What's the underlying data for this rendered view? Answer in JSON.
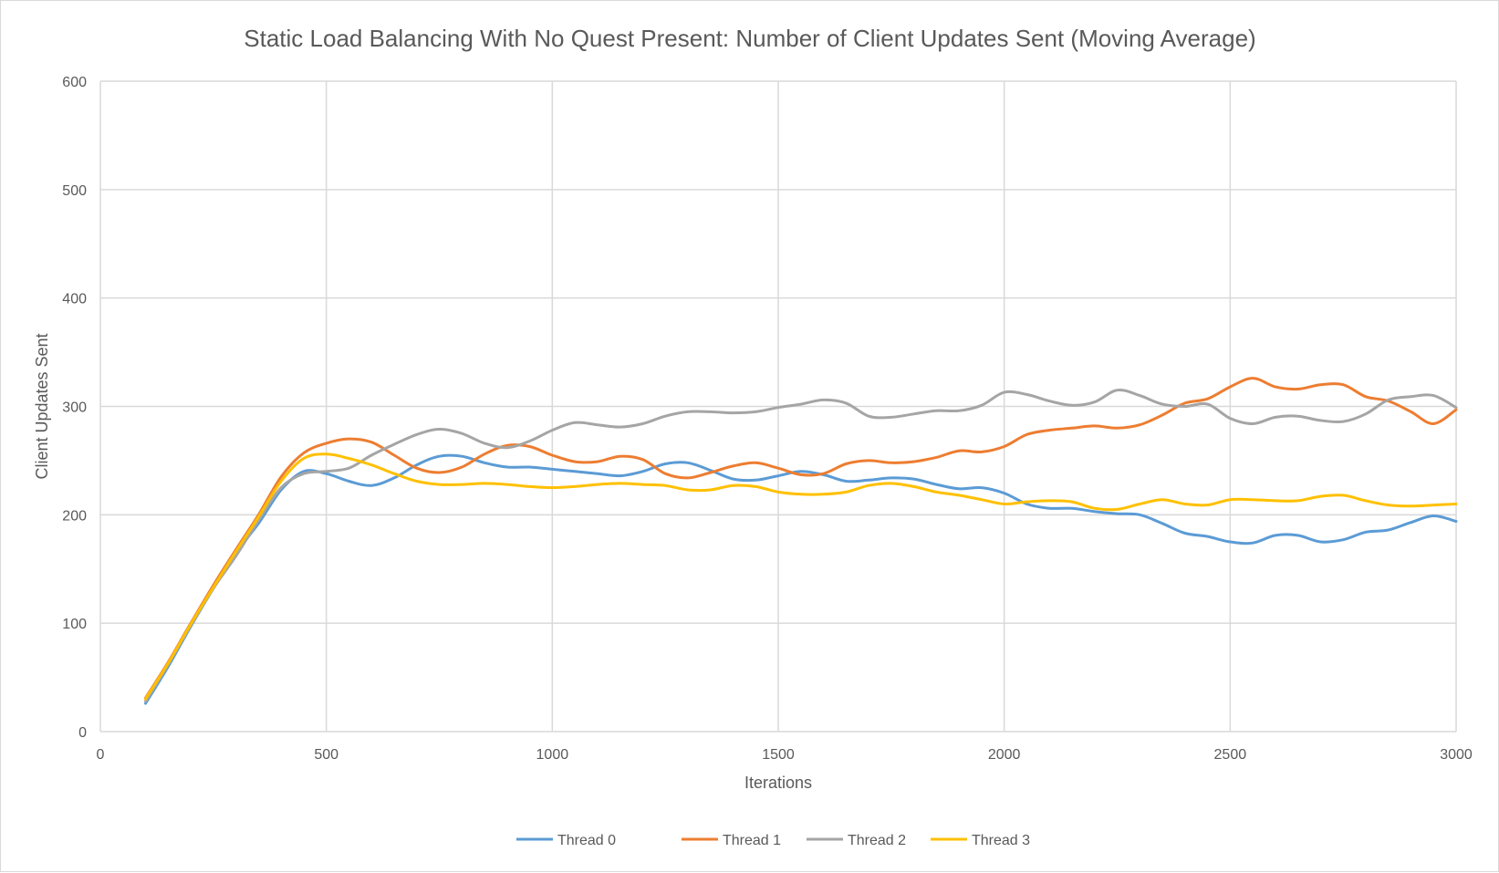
{
  "chart_data": {
    "type": "line",
    "title": "Static Load Balancing With No Quest Present: Number of Client Updates Sent (Moving Average)",
    "xlabel": "Iterations",
    "ylabel": "Client Updates Sent",
    "xlim": [
      0,
      3000
    ],
    "ylim": [
      0,
      600
    ],
    "x_ticks": [
      0,
      500,
      1000,
      1500,
      2000,
      2500,
      3000
    ],
    "y_ticks": [
      0,
      100,
      200,
      300,
      400,
      500,
      600
    ],
    "grid": true,
    "legend_position": "bottom",
    "x": [
      100,
      150,
      200,
      250,
      300,
      350,
      400,
      450,
      500,
      550,
      600,
      650,
      700,
      750,
      800,
      850,
      900,
      950,
      1000,
      1050,
      1100,
      1150,
      1200,
      1250,
      1300,
      1350,
      1400,
      1450,
      1500,
      1550,
      1600,
      1650,
      1700,
      1750,
      1800,
      1850,
      1900,
      1950,
      2000,
      2050,
      2100,
      2150,
      2200,
      2250,
      2300,
      2350,
      2400,
      2450,
      2500,
      2550,
      2600,
      2650,
      2700,
      2750,
      2800,
      2850,
      2900,
      2950,
      3000
    ],
    "series": [
      {
        "name": "Thread 0",
        "color": "#5b9bd5",
        "values": [
          26,
          60,
          97,
          132,
          165,
          192,
          223,
          240,
          238,
          231,
          227,
          234,
          246,
          254,
          254,
          248,
          244,
          244,
          242,
          240,
          238,
          236,
          240,
          247,
          248,
          241,
          233,
          232,
          236,
          240,
          237,
          231,
          232,
          234,
          233,
          228,
          224,
          225,
          220,
          210,
          206,
          206,
          203,
          201,
          200,
          192,
          183,
          180,
          175,
          174,
          181,
          181,
          175,
          177,
          184,
          186,
          193,
          199,
          194
        ]
      },
      {
        "name": "Thread 1",
        "color": "#ed7d31",
        "values": [
          31,
          64,
          100,
          135,
          168,
          200,
          235,
          257,
          266,
          270,
          267,
          255,
          243,
          239,
          244,
          256,
          264,
          263,
          255,
          249,
          249,
          254,
          251,
          238,
          234,
          239,
          245,
          248,
          243,
          237,
          238,
          247,
          250,
          248,
          249,
          253,
          259,
          258,
          263,
          274,
          278,
          280,
          282,
          280,
          283,
          292,
          303,
          307,
          318,
          326,
          318,
          316,
          320,
          320,
          309,
          305,
          295,
          284,
          297
        ]
      },
      {
        "name": "Thread 2",
        "color": "#a5a5a5",
        "values": [
          28,
          62,
          98,
          132,
          162,
          195,
          225,
          238,
          240,
          243,
          255,
          265,
          274,
          279,
          275,
          266,
          262,
          268,
          278,
          285,
          283,
          281,
          284,
          291,
          295,
          295,
          294,
          295,
          299,
          302,
          306,
          303,
          291,
          290,
          293,
          296,
          296,
          301,
          313,
          311,
          305,
          301,
          304,
          315,
          310,
          302,
          300,
          302,
          289,
          284,
          290,
          291,
          287,
          286,
          293,
          306,
          309,
          310,
          299
        ]
      },
      {
        "name": "Thread 3",
        "color": "#ffc000",
        "values": [
          30,
          63,
          99,
          133,
          166,
          198,
          231,
          252,
          256,
          252,
          246,
          238,
          231,
          228,
          228,
          229,
          228,
          226,
          225,
          226,
          228,
          229,
          228,
          227,
          223,
          223,
          227,
          226,
          221,
          219,
          219,
          221,
          227,
          229,
          226,
          221,
          218,
          214,
          210,
          212,
          213,
          212,
          206,
          205,
          210,
          214,
          210,
          209,
          214,
          214,
          213,
          213,
          217,
          218,
          213,
          209,
          208,
          209,
          210
        ]
      }
    ]
  }
}
